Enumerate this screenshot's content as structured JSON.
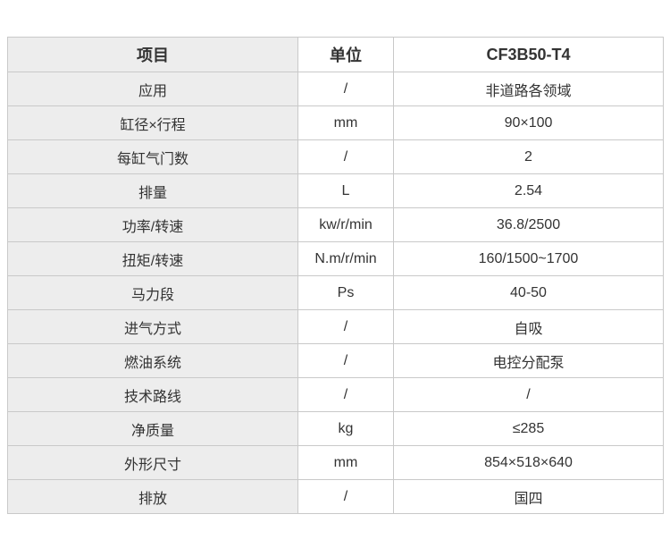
{
  "colors": {
    "background": "#ffffff",
    "item_column_bg": "#ededed",
    "border": "#c9c9c9",
    "text": "#333333"
  },
  "table": {
    "columns": [
      {
        "label": "项目"
      },
      {
        "label": "单位"
      },
      {
        "label": "CF3B50-T4"
      }
    ],
    "rows": [
      {
        "item": "应用",
        "unit": "/",
        "value": "非道路各领域"
      },
      {
        "item": "缸径×行程",
        "unit": "mm",
        "value": "90×100"
      },
      {
        "item": "每缸气门数",
        "unit": "/",
        "value": "2"
      },
      {
        "item": "排量",
        "unit": "L",
        "value": "2.54"
      },
      {
        "item": "功率/转速",
        "unit": "kw/r/min",
        "value": "36.8/2500"
      },
      {
        "item": "扭矩/转速",
        "unit": "N.m/r/min",
        "value": "160/1500~1700"
      },
      {
        "item": "马力段",
        "unit": "Ps",
        "value": "40-50"
      },
      {
        "item": "进气方式",
        "unit": "/",
        "value": "自吸"
      },
      {
        "item": "燃油系统",
        "unit": "/",
        "value": "电控分配泵"
      },
      {
        "item": "技术路线",
        "unit": "/",
        "value": "/"
      },
      {
        "item": "净质量",
        "unit": "kg",
        "value": "≤285"
      },
      {
        "item": "外形尺寸",
        "unit": "mm",
        "value": "854×518×640"
      },
      {
        "item": "排放",
        "unit": "/",
        "value": "国四"
      }
    ]
  }
}
